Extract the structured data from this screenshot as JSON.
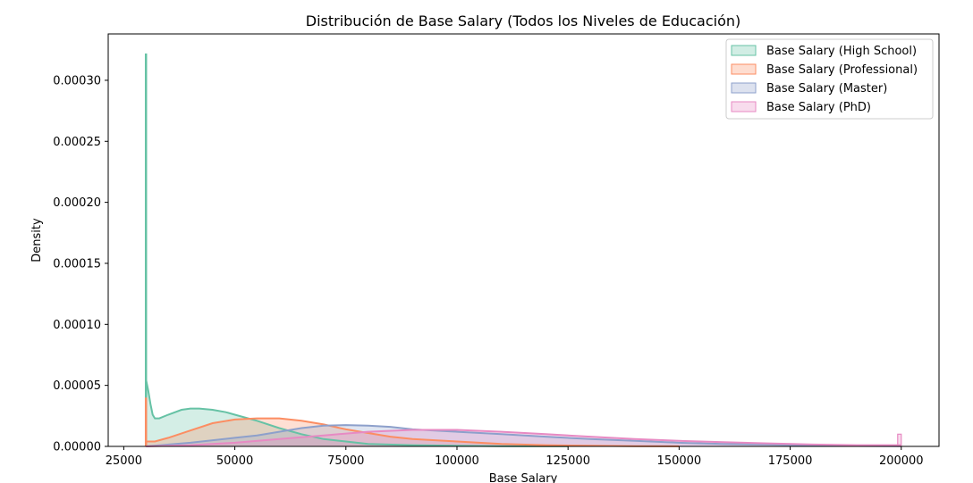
{
  "chart_data": {
    "type": "area",
    "title": "Distribución de Base Salary (Todos los Niveles de Educación)",
    "xlabel": "Base Salary",
    "ylabel": "Density",
    "xlim": [
      21500,
      208500
    ],
    "ylim": [
      0,
      0.000338
    ],
    "x_ticks": [
      25000,
      50000,
      75000,
      100000,
      125000,
      150000,
      175000,
      200000
    ],
    "x_tick_labels": [
      "25000",
      "50000",
      "75000",
      "100000",
      "125000",
      "150000",
      "175000",
      "200000"
    ],
    "y_ticks": [
      0,
      5e-05,
      0.0001,
      0.00015,
      0.0002,
      0.00025,
      0.0003
    ],
    "y_tick_labels": [
      "0.00000",
      "0.00005",
      "0.00010",
      "0.00015",
      "0.00020",
      "0.00025",
      "0.00030"
    ],
    "grid": false,
    "legend_position": "top-right",
    "series": [
      {
        "name": "Base Salary (High School)",
        "color": "#66c2a5",
        "spike": {
          "x": 30000,
          "height": 0.000322
        },
        "points": [
          [
            30000,
            5.5e-05
          ],
          [
            30500,
            4.6e-05
          ],
          [
            31000,
            3.5e-05
          ],
          [
            31500,
            2.6e-05
          ],
          [
            32000,
            2.3e-05
          ],
          [
            33000,
            2.3e-05
          ],
          [
            35000,
            2.6e-05
          ],
          [
            38000,
            3e-05
          ],
          [
            40000,
            3.1e-05
          ],
          [
            42000,
            3.1e-05
          ],
          [
            45000,
            3e-05
          ],
          [
            48000,
            2.8e-05
          ],
          [
            50000,
            2.6e-05
          ],
          [
            55000,
            2.1e-05
          ],
          [
            60000,
            1.5e-05
          ],
          [
            65000,
            1e-05
          ],
          [
            70000,
            6e-06
          ],
          [
            75000,
            4e-06
          ],
          [
            80000,
            2e-06
          ],
          [
            90000,
            1e-06
          ],
          [
            100000,
            5e-07
          ],
          [
            110000,
            2e-07
          ],
          [
            125000,
            5e-08
          ]
        ]
      },
      {
        "name": "Base Salary (Professional)",
        "color": "#fc8d62",
        "spike": {
          "x": 30000,
          "height": 4e-05
        },
        "points": [
          [
            30000,
            4e-06
          ],
          [
            32000,
            4e-06
          ],
          [
            35000,
            7e-06
          ],
          [
            40000,
            1.3e-05
          ],
          [
            45000,
            1.9e-05
          ],
          [
            50000,
            2.2e-05
          ],
          [
            55000,
            2.3e-05
          ],
          [
            60000,
            2.3e-05
          ],
          [
            65000,
            2.1e-05
          ],
          [
            70000,
            1.8e-05
          ],
          [
            75000,
            1.4e-05
          ],
          [
            80000,
            1.1e-05
          ],
          [
            85000,
            8e-06
          ],
          [
            90000,
            6e-06
          ],
          [
            100000,
            4e-06
          ],
          [
            110000,
            2e-06
          ],
          [
            120000,
            1e-06
          ],
          [
            130000,
            5e-07
          ],
          [
            140000,
            2e-07
          ],
          [
            150000,
            1e-07
          ]
        ]
      },
      {
        "name": "Base Salary (Master)",
        "color": "#8da0cb",
        "points": [
          [
            30000,
            0
          ],
          [
            40000,
            3e-06
          ],
          [
            50000,
            7e-06
          ],
          [
            55000,
            9e-06
          ],
          [
            60000,
            1.2e-05
          ],
          [
            65000,
            1.5e-05
          ],
          [
            70000,
            1.7e-05
          ],
          [
            75000,
            1.75e-05
          ],
          [
            80000,
            1.7e-05
          ],
          [
            85000,
            1.6e-05
          ],
          [
            90000,
            1.4e-05
          ],
          [
            95000,
            1.3e-05
          ],
          [
            100000,
            1.2e-05
          ],
          [
            110000,
            1e-05
          ],
          [
            120000,
            8e-06
          ],
          [
            130000,
            6e-06
          ],
          [
            140000,
            4.5e-06
          ],
          [
            150000,
            3e-06
          ],
          [
            160000,
            2e-06
          ],
          [
            170000,
            1.5e-06
          ],
          [
            180000,
            8e-07
          ],
          [
            190000,
            4e-07
          ],
          [
            200000,
            2e-07
          ]
        ]
      },
      {
        "name": "Base Salary (PhD)",
        "color": "#e78ac3",
        "spike": {
          "x": 200000,
          "height": 1e-05
        },
        "points": [
          [
            30000,
            0
          ],
          [
            40000,
            1e-06
          ],
          [
            50000,
            3e-06
          ],
          [
            60000,
            6e-06
          ],
          [
            70000,
            9e-06
          ],
          [
            80000,
            1.2e-05
          ],
          [
            90000,
            1.35e-05
          ],
          [
            100000,
            1.35e-05
          ],
          [
            110000,
            1.2e-05
          ],
          [
            120000,
            1e-05
          ],
          [
            130000,
            8e-06
          ],
          [
            140000,
            6e-06
          ],
          [
            150000,
            4.5e-06
          ],
          [
            160000,
            3.5e-06
          ],
          [
            170000,
            2.5e-06
          ],
          [
            180000,
            1.5e-06
          ],
          [
            190000,
            1e-06
          ],
          [
            200000,
            1e-06
          ]
        ]
      }
    ]
  }
}
